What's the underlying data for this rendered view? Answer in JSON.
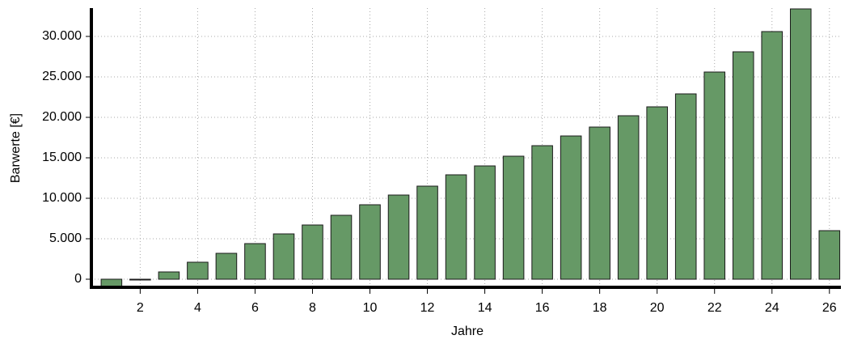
{
  "chart_data": {
    "type": "bar",
    "x_label": "Jahre",
    "y_label": "Barwerte [€]",
    "x": [
      1,
      2,
      3,
      4,
      5,
      6,
      7,
      8,
      9,
      10,
      11,
      12,
      13,
      14,
      15,
      16,
      17,
      18,
      19,
      20,
      21,
      22,
      23,
      24,
      25,
      26
    ],
    "values": [
      -1200,
      -100,
      900,
      2100,
      3200,
      4400,
      5600,
      6700,
      7900,
      9200,
      10400,
      11500,
      12900,
      14000,
      15200,
      16500,
      17700,
      18800,
      20200,
      21300,
      22900,
      25600,
      28100,
      30600,
      33400,
      6000
    ],
    "color": "#669966",
    "xlim": [
      0.3,
      26.4
    ],
    "xticks": [
      2,
      4,
      6,
      8,
      10,
      12,
      14,
      16,
      18,
      20,
      22,
      24,
      26
    ],
    "ylim": [
      -1000,
      33500
    ],
    "yticks": [
      0,
      {
        "value": 5000,
        "label": "5.000"
      },
      {
        "value": 10000,
        "label": "10.000"
      },
      {
        "value": 15000,
        "label": "15.000"
      },
      {
        "value": 20000,
        "label": "20.000"
      },
      {
        "value": 25000,
        "label": "25.000"
      },
      {
        "value": 30000,
        "label": "30.000"
      }
    ],
    "grid": true
  }
}
